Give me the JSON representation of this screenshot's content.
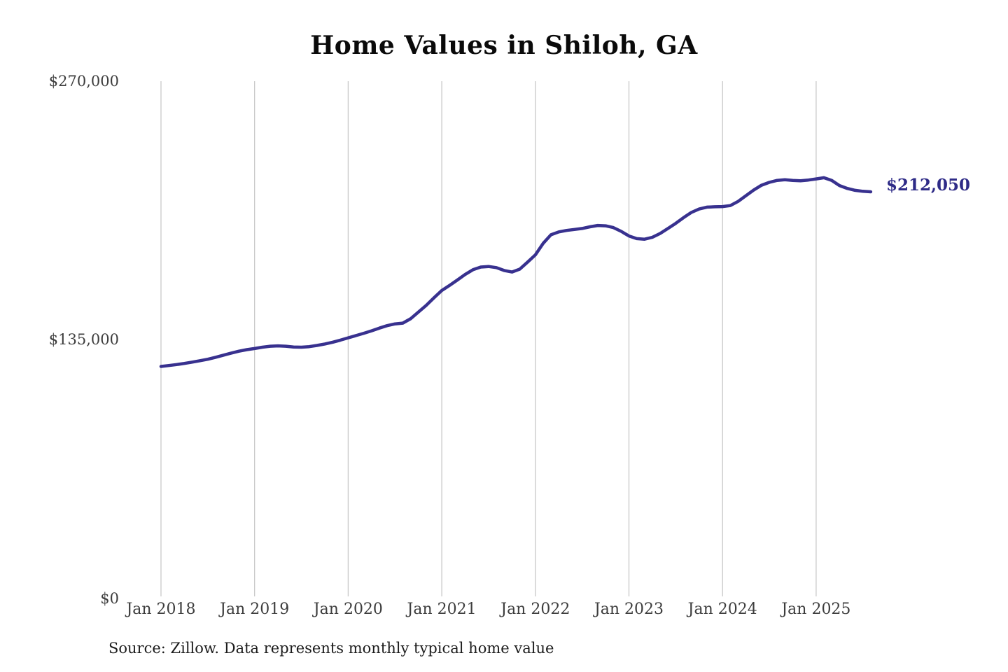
{
  "title": "Home Values in Shiloh, GA",
  "annotation": {
    "last_value_label": "$212,050"
  },
  "source_note": "Source: Zillow. Data represents monthly typical home value",
  "colors": {
    "line": "#38318f",
    "last_value_label": "#2e2b87",
    "grid": "#c8c8c8",
    "axis_text": "#3d3d3d",
    "title_text": "#0a0a0a",
    "background": "#ffffff"
  },
  "y_axis": {
    "ticks": [
      "$270,000",
      "$135,000",
      "$0"
    ],
    "min": 0,
    "max": 270000
  },
  "x_axis": {
    "ticks": [
      "Jan 2018",
      "Jan 2019",
      "Jan 2020",
      "Jan 2021",
      "Jan 2022",
      "Jan 2023",
      "Jan 2024",
      "Jan 2025"
    ]
  },
  "chart_data": {
    "type": "line",
    "title": "Home Values in Shiloh, GA",
    "ylabel": "",
    "xlabel": "",
    "ylim": [
      0,
      270000
    ],
    "y_ticks": [
      0,
      135000,
      270000
    ],
    "x_tick_labels": [
      "Jan 2018",
      "Jan 2019",
      "Jan 2020",
      "Jan 2021",
      "Jan 2022",
      "Jan 2023",
      "Jan 2024",
      "Jan 2025"
    ],
    "grid": "vertical-only",
    "legend": "none",
    "frequency": "monthly",
    "x_start": "2018-01",
    "x_end": "2025-08",
    "last_value": 212050,
    "months": [
      "2018-01",
      "2018-02",
      "2018-03",
      "2018-04",
      "2018-05",
      "2018-06",
      "2018-07",
      "2018-08",
      "2018-09",
      "2018-10",
      "2018-11",
      "2018-12",
      "2019-01",
      "2019-02",
      "2019-03",
      "2019-04",
      "2019-05",
      "2019-06",
      "2019-07",
      "2019-08",
      "2019-09",
      "2019-10",
      "2019-11",
      "2019-12",
      "2020-01",
      "2020-02",
      "2020-03",
      "2020-04",
      "2020-05",
      "2020-06",
      "2020-07",
      "2020-08",
      "2020-09",
      "2020-10",
      "2020-11",
      "2020-12",
      "2021-01",
      "2021-02",
      "2021-03",
      "2021-04",
      "2021-05",
      "2021-06",
      "2021-07",
      "2021-08",
      "2021-09",
      "2021-10",
      "2021-11",
      "2021-12",
      "2022-01",
      "2022-02",
      "2022-03",
      "2022-04",
      "2022-05",
      "2022-06",
      "2022-07",
      "2022-08",
      "2022-09",
      "2022-10",
      "2022-11",
      "2022-12",
      "2023-01",
      "2023-02",
      "2023-03",
      "2023-04",
      "2023-05",
      "2023-06",
      "2023-07",
      "2023-08",
      "2023-09",
      "2023-10",
      "2023-11",
      "2023-12",
      "2024-01",
      "2024-02",
      "2024-03",
      "2024-04",
      "2024-05",
      "2024-06",
      "2024-07",
      "2024-08",
      "2024-09",
      "2024-10",
      "2024-11",
      "2024-12",
      "2025-01",
      "2025-02",
      "2025-03",
      "2025-04",
      "2025-05",
      "2025-06",
      "2025-07",
      "2025-08"
    ],
    "values": [
      120500,
      121000,
      121500,
      122100,
      122800,
      123500,
      124300,
      125300,
      126400,
      127500,
      128500,
      129300,
      129900,
      130600,
      131100,
      131300,
      131100,
      130700,
      130600,
      130900,
      131500,
      132300,
      133200,
      134300,
      135500,
      136700,
      137900,
      139200,
      140600,
      141900,
      142800,
      143200,
      145500,
      149000,
      152500,
      156500,
      160300,
      163000,
      165800,
      168700,
      171200,
      172600,
      172900,
      172300,
      170800,
      170000,
      171500,
      175200,
      179000,
      185000,
      189500,
      191000,
      191800,
      192300,
      192800,
      193700,
      194400,
      194200,
      193300,
      191300,
      188900,
      187500,
      187200,
      188200,
      190200,
      192800,
      195500,
      198500,
      201200,
      203000,
      204000,
      204200,
      204300,
      204800,
      207000,
      210000,
      213000,
      215500,
      217000,
      218000,
      218400,
      218000,
      217800,
      218200,
      218800,
      219400,
      218000,
      215300,
      213800,
      212800,
      212300,
      212050
    ]
  }
}
